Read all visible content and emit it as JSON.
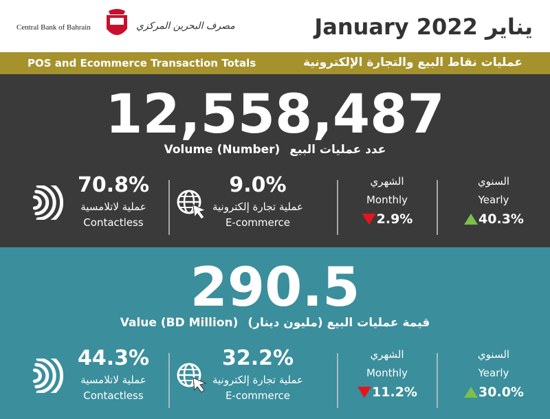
{
  "header": {
    "bank_en": "Central Bank of Bahrain",
    "bank_ar": "مصرف البحرين المركزي",
    "title_en": "January 2022",
    "title_ar": "يناير"
  },
  "banner": {
    "en": "POS and Ecommerce Transaction Totals",
    "ar": "عمليات نقاط البيع والتجارة الإلكترونية"
  },
  "volume": {
    "total": "12,558,487",
    "label_en": "Volume (Number)",
    "label_ar": "عدد عمليات البيع",
    "contactless": {
      "value": "70.8%",
      "ar": "عملية لاتلامسية",
      "en": "Contactless"
    },
    "ecommerce": {
      "value": "9.0%",
      "ar": "عملية تجارة إلكترونية",
      "en": "E-commerce"
    },
    "monthly": {
      "ar": "الشهري",
      "en": "Monthly",
      "change": "2.9%",
      "direction": "down"
    },
    "yearly": {
      "ar": "السنوي",
      "en": "Yearly",
      "change": "40.3%",
      "direction": "up"
    }
  },
  "value": {
    "total": "290.5",
    "label_en": "Value (BD Million)",
    "label_ar": "قيمة عمليات البيع (مليون دينار)",
    "contactless": {
      "value": "44.3%",
      "ar": "عملية لاتلامسية",
      "en": "Contactless"
    },
    "ecommerce": {
      "value": "32.2%",
      "ar": "عملية تجارة إلكترونية",
      "en": "E-commerce"
    },
    "monthly": {
      "ar": "الشهري",
      "en": "Monthly",
      "change": "11.2%",
      "direction": "down"
    },
    "yearly": {
      "ar": "السنوي",
      "en": "Yearly",
      "change": "30.0%",
      "direction": "up"
    }
  }
}
